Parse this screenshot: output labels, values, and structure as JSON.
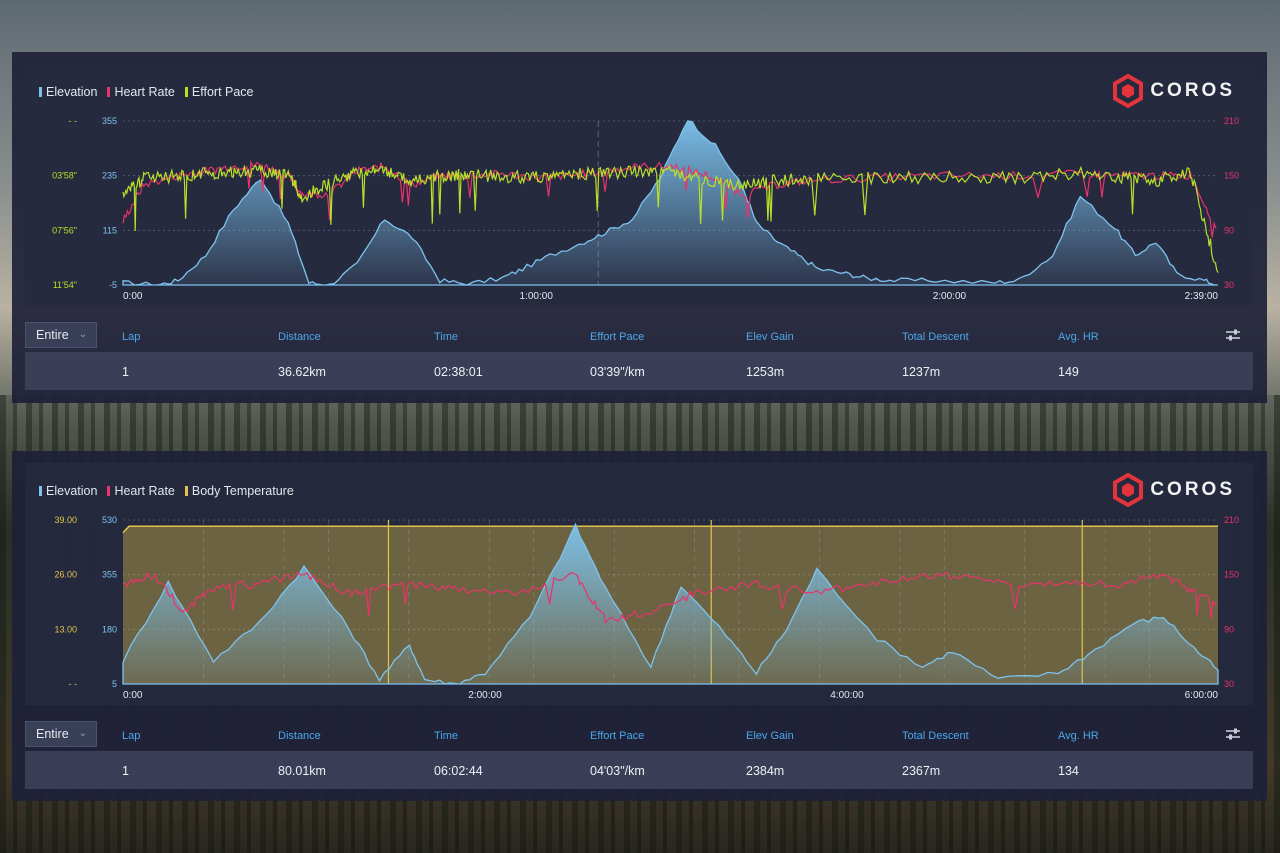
{
  "colors": {
    "elevation": "#7ec3ee",
    "heart_rate": "#e8336b",
    "effort_pace": "#b8e02a",
    "body_temperature": "#e2c34a",
    "header_text": "#4aa8ec",
    "logo_red": "#e3343b"
  },
  "brand": {
    "name": "COROS"
  },
  "panels": [
    {
      "legend": [
        "Elevation",
        "Heart Rate",
        "Effort Pace"
      ],
      "y_left_outer": [
        "- -",
        "03'58\"",
        "07'56\"",
        "11'54\""
      ],
      "y_left_inner": [
        "355",
        "235",
        "115",
        "-5"
      ],
      "y_right": [
        "210",
        "150",
        "90",
        "30"
      ],
      "x_ticks": [
        "0:00",
        "1:00:00",
        "2:00:00",
        "2:39:00"
      ],
      "range_selector": {
        "value": "Entire"
      },
      "columns": [
        "Lap",
        "Distance",
        "Time",
        "Effort Pace",
        "Elev Gain",
        "Total Descent",
        "Avg. HR"
      ],
      "row": [
        "1",
        "36.62km",
        "02:38:01",
        "03'39\"/km",
        "1253m",
        "1237m",
        "149"
      ]
    },
    {
      "legend": [
        "Elevation",
        "Heart Rate",
        "Body Temperature"
      ],
      "y_left_outer": [
        "39.00",
        "26.00",
        "13.00",
        "- -"
      ],
      "y_left_inner": [
        "530",
        "355",
        "180",
        "5"
      ],
      "y_right": [
        "210",
        "150",
        "90",
        "30"
      ],
      "x_ticks": [
        "0:00",
        "2:00:00",
        "4:00:00",
        "6:00:00"
      ],
      "range_selector": {
        "value": "Entire"
      },
      "columns": [
        "Lap",
        "Distance",
        "Time",
        "Effort Pace",
        "Elev Gain",
        "Total Descent",
        "Avg. HR"
      ],
      "row": [
        "1",
        "80.01km",
        "06:02:44",
        "04'03\"/km",
        "2384m",
        "2367m",
        "134"
      ]
    }
  ],
  "chart_data": [
    {
      "type": "line",
      "x_unit": "minutes",
      "xlim": [
        0,
        159
      ],
      "ylim_elevation": [
        -5,
        355
      ],
      "ylim_heart_rate": [
        30,
        210
      ],
      "series": [
        {
          "name": "Elevation",
          "axis": "left",
          "x": [
            0,
            5,
            8,
            12,
            16,
            20,
            24,
            27,
            30,
            34,
            38,
            42,
            46,
            50,
            55,
            58,
            62,
            67,
            70,
            74,
            78,
            82,
            86,
            90,
            92,
            95,
            98,
            101,
            105,
            108,
            112,
            118,
            126,
            130,
            135,
            139,
            144,
            147,
            150,
            153,
            157,
            159
          ],
          "values": [
            0,
            -5,
            5,
            60,
            160,
            230,
            130,
            0,
            -5,
            40,
            140,
            100,
            5,
            -3,
            10,
            30,
            60,
            90,
            110,
            140,
            230,
            360,
            300,
            210,
            130,
            90,
            60,
            30,
            20,
            10,
            5,
            5,
            0,
            5,
            60,
            190,
            120,
            60,
            90,
            20,
            5,
            -5
          ]
        },
        {
          "name": "Heart Rate",
          "axis": "right",
          "x": [
            0,
            3,
            8,
            12,
            16,
            20,
            24,
            26,
            30,
            34,
            38,
            42,
            46,
            50,
            55,
            60,
            65,
            70,
            75,
            80,
            85,
            90,
            95,
            100,
            110,
            120,
            130,
            140,
            145,
            150,
            155,
            159
          ],
          "values": [
            100,
            140,
            150,
            155,
            160,
            162,
            150,
            130,
            130,
            155,
            160,
            140,
            150,
            150,
            152,
            148,
            150,
            155,
            160,
            160,
            150,
            130,
            140,
            145,
            148,
            150,
            150,
            152,
            150,
            150,
            150,
            90
          ]
        },
        {
          "name": "Effort Pace",
          "axis": "left_outer",
          "x": [
            0,
            3,
            8,
            12,
            16,
            20,
            24,
            26,
            30,
            34,
            38,
            42,
            46,
            50,
            55,
            60,
            65,
            70,
            75,
            80,
            85,
            90,
            95,
            100,
            110,
            120,
            130,
            140,
            145,
            150,
            155,
            159
          ],
          "values": [
            "05:10",
            "04:10",
            "04:00",
            "03:50",
            "03:40",
            "03:40",
            "03:50",
            "05:30",
            "04:30",
            "03:40",
            "03:40",
            "04:20",
            "04:00",
            "03:55",
            "04:00",
            "04:05",
            "03:50",
            "03:45",
            "03:40",
            "03:45",
            "04:20",
            "04:40",
            "04:20",
            "04:10",
            "04:10",
            "04:05",
            "04:05",
            "03:45",
            "04:10",
            "04:20",
            "03:40",
            "11:00"
          ]
        }
      ]
    },
    {
      "type": "line",
      "x_unit": "minutes",
      "xlim": [
        0,
        363
      ],
      "ylim_elevation": [
        5,
        530
      ],
      "ylim_heart_rate": [
        30,
        210
      ],
      "series": [
        {
          "name": "Elevation",
          "axis": "left",
          "x": [
            0,
            15,
            30,
            45,
            60,
            75,
            85,
            95,
            100,
            110,
            120,
            135,
            150,
            160,
            175,
            185,
            200,
            210,
            220,
            230,
            250,
            265,
            275,
            290,
            310,
            320,
            335,
            345,
            355,
            363
          ],
          "values": [
            80,
            330,
            80,
            200,
            380,
            180,
            20,
            130,
            20,
            5,
            40,
            220,
            510,
            310,
            60,
            320,
            160,
            40,
            180,
            370,
            150,
            60,
            110,
            20,
            40,
            100,
            200,
            220,
            120,
            50
          ]
        },
        {
          "name": "Heart Rate",
          "axis": "right",
          "x": [
            0,
            10,
            20,
            30,
            45,
            60,
            75,
            85,
            95,
            110,
            130,
            150,
            160,
            175,
            190,
            210,
            230,
            250,
            270,
            290,
            310,
            330,
            345,
            355,
            363
          ],
          "values": [
            140,
            150,
            110,
            135,
            140,
            150,
            130,
            135,
            140,
            135,
            130,
            150,
            100,
            110,
            130,
            140,
            130,
            140,
            150,
            140,
            140,
            140,
            150,
            130,
            120
          ]
        },
        {
          "name": "Body Temperature",
          "axis": "left_outer",
          "x": [
            0,
            2,
            363
          ],
          "values": [
            36.0,
            37.5,
            37.5
          ]
        }
      ]
    }
  ]
}
